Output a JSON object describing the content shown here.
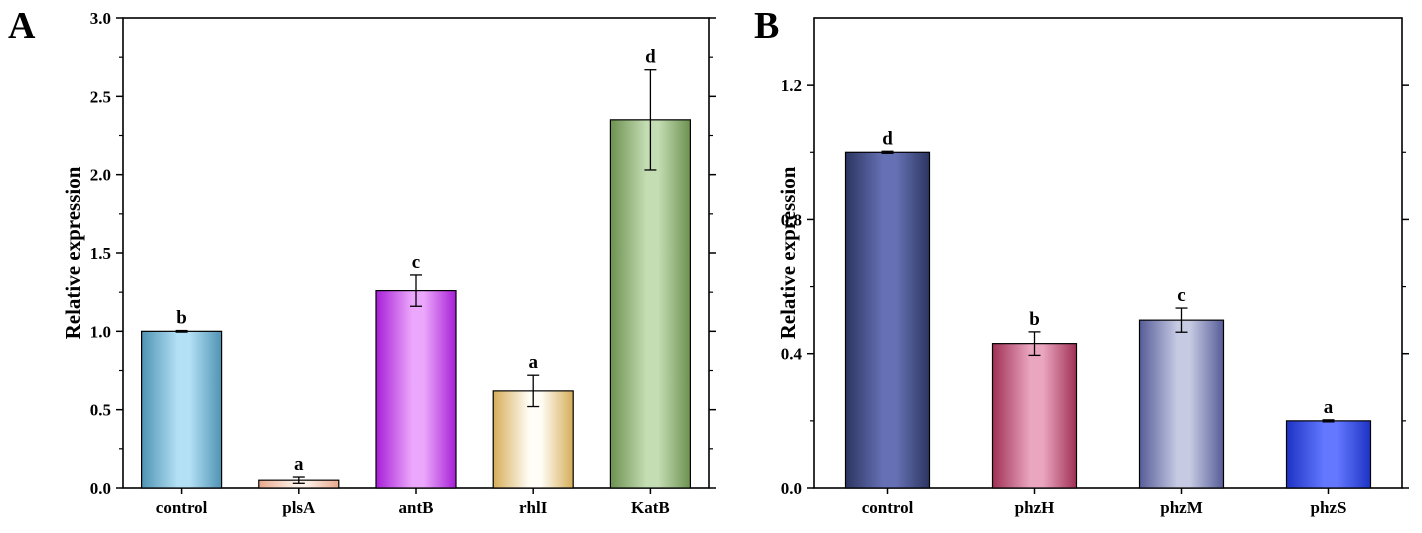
{
  "chart_data": [
    {
      "type": "bar",
      "panel": "A",
      "categories": [
        "control",
        "plsA",
        "antB",
        "rhlI",
        "KatB"
      ],
      "values": [
        1.0,
        0.05,
        1.26,
        0.62,
        2.35
      ],
      "errors": [
        0.005,
        0.02,
        0.1,
        0.1,
        0.32
      ],
      "significance": [
        "b",
        "a",
        "c",
        "a",
        "d"
      ],
      "ylabel": "Relative expression",
      "xlabel": "",
      "ylim": [
        0,
        3.0
      ],
      "yticks": [
        "0.0",
        "0.5",
        "1.0",
        "1.5",
        "2.0",
        "2.5",
        "3.0"
      ],
      "colors": [
        [
          "#4f93b4",
          "#b3e0f5"
        ],
        [
          "#e8a98e",
          "#fdf0e8"
        ],
        [
          "#a71fd6",
          "#eba7fb"
        ],
        [
          "#d6ad58",
          "#fffdf6"
        ],
        [
          "#6c9150",
          "#c4ddb3"
        ]
      ]
    },
    {
      "type": "bar",
      "panel": "B",
      "categories": [
        "control",
        "phzH",
        "phzM",
        "phzS"
      ],
      "values": [
        1.0,
        0.43,
        0.5,
        0.2
      ],
      "errors": [
        0.003,
        0.035,
        0.036,
        0.003
      ],
      "significance": [
        "d",
        "b",
        "c",
        "a"
      ],
      "ylabel": "Relative expression",
      "xlabel": "",
      "ylim": [
        0,
        1.4
      ],
      "yticks": [
        "0.0",
        "0.4",
        "0.8",
        "1.2"
      ],
      "colors": [
        [
          "#2c3561",
          "#6671b5"
        ],
        [
          "#a03055",
          "#eaa6bf"
        ],
        [
          "#565d98",
          "#c6cae3"
        ],
        [
          "#1e33c4",
          "#6378ff"
        ]
      ]
    }
  ]
}
